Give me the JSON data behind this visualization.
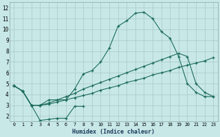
{
  "xlabel": "Humidex (Indice chaleur)",
  "background_color": "#c8e8e8",
  "grid_color": "#a8c8c8",
  "line_color": "#1a6a5a",
  "xlim": [
    -0.5,
    23.5
  ],
  "ylim": [
    1.5,
    12.5
  ],
  "yticks": [
    2,
    3,
    4,
    5,
    6,
    7,
    8,
    9,
    10,
    11,
    12
  ],
  "xticks": [
    0,
    1,
    2,
    3,
    4,
    5,
    6,
    7,
    8,
    9,
    10,
    11,
    12,
    13,
    14,
    15,
    16,
    17,
    18,
    19,
    20,
    21,
    22,
    23
  ],
  "series_main_x": [
    0,
    1,
    2,
    3,
    4,
    5,
    6,
    7,
    8,
    9,
    10,
    11,
    12,
    13,
    14,
    15,
    16,
    17,
    18,
    19,
    20,
    21,
    22,
    23
  ],
  "series_main_y": [
    4.8,
    4.3,
    3.0,
    3.0,
    3.5,
    3.5,
    3.5,
    4.5,
    5.9,
    6.2,
    7.0,
    8.3,
    10.3,
    10.8,
    11.5,
    11.6,
    11.0,
    9.8,
    9.2,
    7.5,
    5.0,
    4.2,
    3.8,
    3.8
  ],
  "series_low_x": [
    0,
    1,
    2,
    3,
    4,
    5,
    6,
    7,
    8
  ],
  "series_low_y": [
    4.8,
    4.3,
    3.0,
    1.6,
    1.7,
    1.8,
    1.8,
    2.9,
    2.9
  ],
  "series_diag1_x": [
    0,
    1,
    2,
    3,
    4,
    5,
    6,
    7,
    8,
    9,
    10,
    11,
    12,
    13,
    14,
    15,
    16,
    17,
    18,
    19,
    20,
    21,
    22,
    23
  ],
  "series_diag1_y": [
    4.8,
    4.3,
    3.0,
    3.0,
    3.1,
    3.3,
    3.5,
    3.7,
    3.9,
    4.1,
    4.4,
    4.6,
    4.8,
    5.1,
    5.3,
    5.5,
    5.8,
    6.0,
    6.2,
    6.5,
    6.7,
    6.9,
    7.1,
    7.4
  ],
  "series_diag2_x": [
    0,
    1,
    2,
    3,
    4,
    5,
    6,
    7,
    8,
    9,
    10,
    11,
    12,
    13,
    14,
    15,
    16,
    17,
    18,
    19,
    20,
    21,
    22,
    23
  ],
  "series_diag2_y": [
    4.8,
    4.3,
    3.0,
    3.0,
    3.2,
    3.5,
    3.8,
    4.1,
    4.5,
    4.8,
    5.1,
    5.4,
    5.7,
    6.0,
    6.3,
    6.6,
    6.9,
    7.2,
    7.5,
    7.8,
    7.5,
    5.0,
    4.2,
    3.8
  ]
}
